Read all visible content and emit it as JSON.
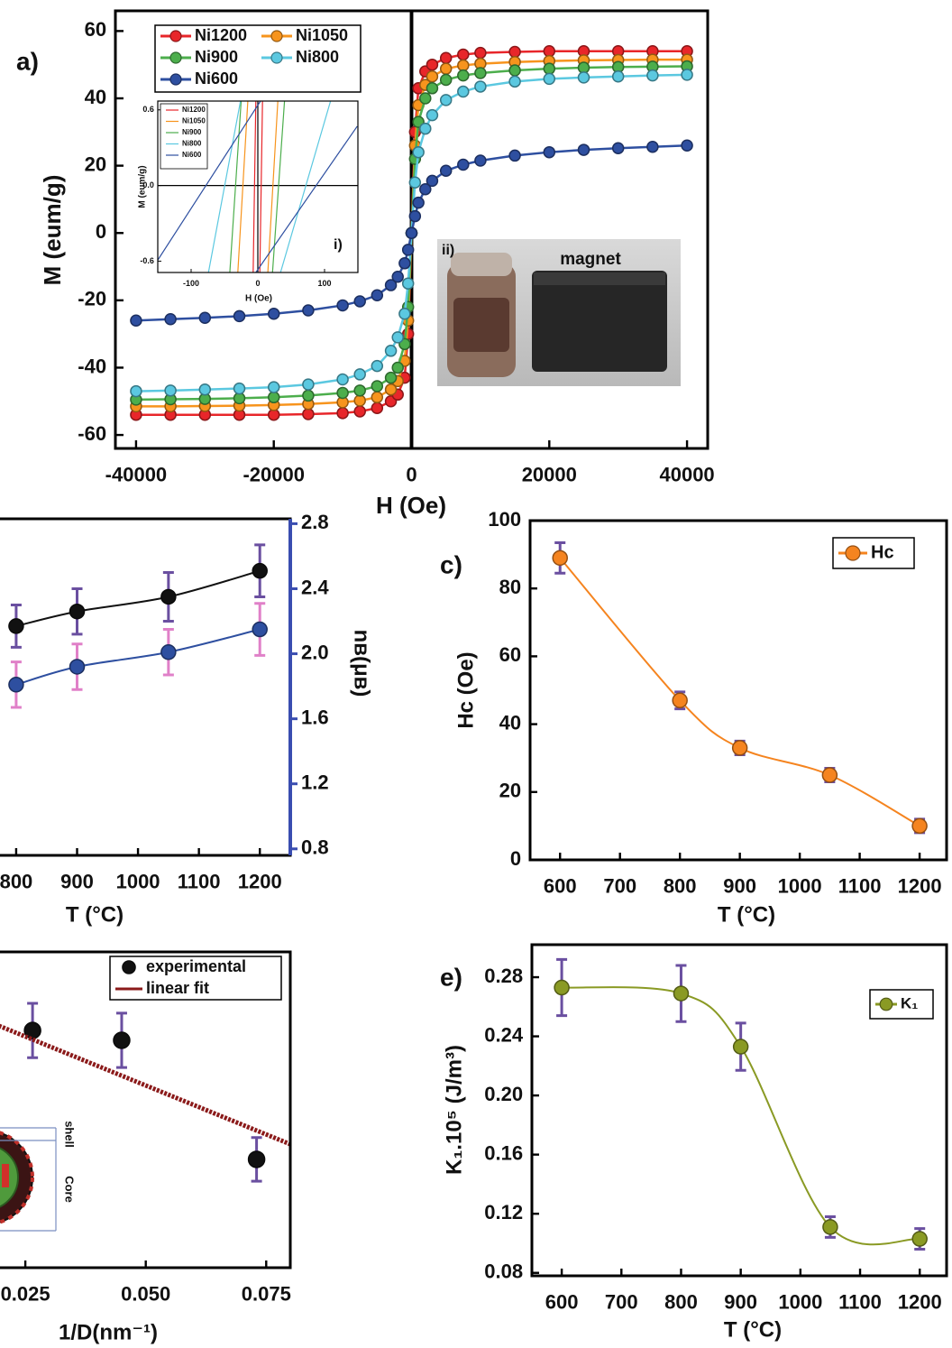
{
  "chart_data": [
    {
      "type": "line",
      "panel_label": "a)",
      "xlabel": "H (Oe)",
      "ylabel": "M (eum/g)",
      "xlim": [
        -43000,
        43000
      ],
      "ylim": [
        -64,
        66
      ],
      "xticks": [
        -40000,
        -20000,
        0,
        20000,
        40000
      ],
      "yticks": [
        -60,
        -40,
        -20,
        0,
        20,
        40,
        60
      ],
      "x": [
        -40000,
        -35000,
        -30000,
        -25000,
        -20000,
        -15000,
        -10000,
        -7500,
        -5000,
        -3000,
        -2000,
        -1000,
        -500,
        0,
        500,
        1000,
        2000,
        3000,
        5000,
        7500,
        10000,
        15000,
        20000,
        25000,
        30000,
        35000,
        40000
      ],
      "series": [
        {
          "name": "Ni1200",
          "color": "#e8262a",
          "values": [
            -54,
            -54,
            -54,
            -54,
            -54,
            -53.8,
            -53.5,
            -53,
            -52,
            -50,
            -48,
            -43,
            -30,
            0,
            30,
            43,
            48,
            50,
            52,
            53,
            53.5,
            53.8,
            54,
            54,
            54,
            54,
            54
          ]
        },
        {
          "name": "Ni1050",
          "color": "#f7941d",
          "values": [
            -51.5,
            -51.5,
            -51.4,
            -51.3,
            -51.1,
            -50.8,
            -50.3,
            -49.8,
            -48.8,
            -46.5,
            -44,
            -38,
            -26,
            0,
            26,
            38,
            44,
            46.5,
            48.8,
            49.8,
            50.3,
            50.8,
            51.1,
            51.3,
            51.4,
            51.5,
            51.5
          ]
        },
        {
          "name": "Ni900",
          "color": "#4cae4c",
          "values": [
            -49.5,
            -49.4,
            -49.3,
            -49.1,
            -48.8,
            -48.3,
            -47.5,
            -46.8,
            -45.5,
            -43,
            -40,
            -33,
            -22,
            0,
            22,
            33,
            40,
            43,
            45.5,
            46.8,
            47.5,
            48.3,
            48.8,
            49.1,
            49.3,
            49.4,
            49.5
          ]
        },
        {
          "name": "Ni800",
          "color": "#5bc8e0",
          "values": [
            -47,
            -46.8,
            -46.5,
            -46.2,
            -45.8,
            -45,
            -43.5,
            -42,
            -39.5,
            -35,
            -31,
            -24,
            -15,
            0,
            15,
            24,
            31,
            35,
            39.5,
            42,
            43.5,
            45,
            45.8,
            46.2,
            46.5,
            46.8,
            47
          ]
        },
        {
          "name": "Ni600",
          "color": "#2e4fa0",
          "values": [
            -26,
            -25.6,
            -25.2,
            -24.7,
            -24,
            -23,
            -21.5,
            -20.3,
            -18.5,
            -15.5,
            -13,
            -9,
            -5,
            0,
            5,
            9,
            13,
            15.5,
            18.5,
            20.3,
            21.5,
            23,
            24,
            24.7,
            25.2,
            25.6,
            26
          ]
        }
      ],
      "annotations": [
        "ii)",
        "magnet"
      ]
    },
    {
      "type": "line",
      "panel_label": "i)",
      "xlabel": "H (Oe)",
      "ylabel": "M (eum/g)",
      "xlim": [
        -150,
        150
      ],
      "ylim": [
        -0.69,
        0.67
      ],
      "xticks": [
        -100,
        0,
        100
      ],
      "yticks": [
        0.6,
        {
          "value": 0,
          "label": "0.0"
        },
        -0.6
      ],
      "series": [
        {
          "name": "Ni1200",
          "color": "#e8262a",
          "x": [
            -7,
            -3,
            null,
            3,
            7
          ],
          "values": [
            -0.69,
            0.67,
            null,
            -0.69,
            0.67
          ]
        },
        {
          "name": "Ni1050",
          "color": "#f7941d",
          "x": [
            -30,
            -15,
            null,
            15,
            30
          ],
          "values": [
            -0.69,
            0.67,
            null,
            -0.69,
            0.67
          ]
        },
        {
          "name": "Ni900",
          "color": "#4cae4c",
          "x": [
            -42,
            -25,
            null,
            22,
            40
          ],
          "values": [
            -0.69,
            0.67,
            null,
            -0.69,
            0.67
          ]
        },
        {
          "name": "Ni800",
          "color": "#5bc8e0",
          "x": [
            -74,
            -26,
            null,
            34,
            109
          ],
          "values": [
            -0.69,
            0.67,
            null,
            -0.69,
            0.67
          ]
        },
        {
          "name": "Ni600",
          "color": "#2e4fa0",
          "x": [
            -151,
            4,
            null,
            -3,
            149
          ],
          "values": [
            -0.6,
            0.67,
            null,
            -0.69,
            0.47
          ]
        }
      ]
    },
    {
      "type": "line",
      "xlabel": "T (°C)",
      "y2label": "nʙ(μʙ)",
      "xlim": [
        550,
        1250
      ],
      "y2lim": [
        0.76,
        2.83
      ],
      "xticks": [
        800,
        900,
        1000,
        1100,
        1200
      ],
      "y2ticks": [
        2.8,
        2.4,
        {
          "value": 2,
          "label": "2.0"
        },
        1.6,
        1.2,
        0.8
      ],
      "x": [
        800,
        900,
        1050,
        1200
      ],
      "series": [
        {
          "color": "#111111",
          "axis": "y2",
          "values": [
            2.17,
            2.26,
            2.35,
            2.51
          ],
          "errors": [
            0.13,
            0.14,
            0.15,
            0.16
          ],
          "error_color": "#6a4fa0"
        },
        {
          "color": "#2e4fa0",
          "axis": "y2",
          "values": [
            1.81,
            1.92,
            2.01,
            2.15
          ],
          "errors": [
            0.14,
            0.14,
            0.14,
            0.16
          ],
          "error_color": "#e080c8"
        }
      ]
    },
    {
      "type": "line",
      "panel_label": "c)",
      "xlabel": "T (°C)",
      "ylabel": "Hᴄ (Oe)",
      "xlim": [
        550,
        1245
      ],
      "ylim": [
        0,
        100
      ],
      "xticks": [
        600,
        700,
        800,
        900,
        1000,
        1100,
        1200
      ],
      "yticks": [
        0,
        20,
        40,
        60,
        80,
        100
      ],
      "x": [
        600,
        800,
        900,
        1050,
        1200
      ],
      "series": [
        {
          "name": "Hᴄ",
          "color": "#f5841f",
          "values": [
            89,
            47,
            33,
            25,
            10
          ],
          "errors": [
            4.5,
            2.5,
            2,
            2,
            2
          ],
          "error_color": "#6a4fa0"
        }
      ]
    },
    {
      "type": "scatter",
      "xlabel": "1/D(nm⁻¹)",
      "xlim": [
        0,
        0.08
      ],
      "ylim": [
        0,
        1
      ],
      "xticks": [
        0.025,
        {
          "value": 0.05,
          "label": "0.050"
        },
        0.075
      ],
      "series": [
        {
          "name": "experimental",
          "color": "#111111",
          "x": [
            0.0265,
            0.045,
            0.073
          ],
          "values": [
            0.751,
            0.72,
            0.343
          ],
          "errors": [
            0.086,
            0.086,
            0.069
          ],
          "error_color": "#6a4fa0"
        },
        {
          "name": "linear fit",
          "type": "line",
          "color": "#8b1a1a",
          "x": [
            0,
            0.08
          ],
          "values": [
            0.887,
            0.391
          ]
        }
      ],
      "annotations": [
        "shell",
        "Core"
      ]
    },
    {
      "type": "line",
      "panel_label": "e)",
      "xlabel": "T (°C)",
      "ylabel": "K₁.10⁵ (J/m³)",
      "xlim": [
        550,
        1245
      ],
      "ylim": [
        0.078,
        0.302
      ],
      "xticks": [
        600,
        700,
        800,
        900,
        1000,
        1100,
        1200
      ],
      "yticks": [
        0.08,
        0.12,
        0.16,
        {
          "value": 0.2,
          "label": "0.20"
        },
        0.24,
        0.28
      ],
      "x": [
        600,
        800,
        900,
        1050,
        1200
      ],
      "series": [
        {
          "name": "K₁",
          "color": "#8a9a24",
          "values": [
            0.273,
            0.269,
            0.233,
            0.111,
            0.103
          ],
          "errors": [
            0.019,
            0.019,
            0.016,
            0.007,
            0.007
          ],
          "error_color": "#6a4fa0"
        }
      ]
    }
  ]
}
